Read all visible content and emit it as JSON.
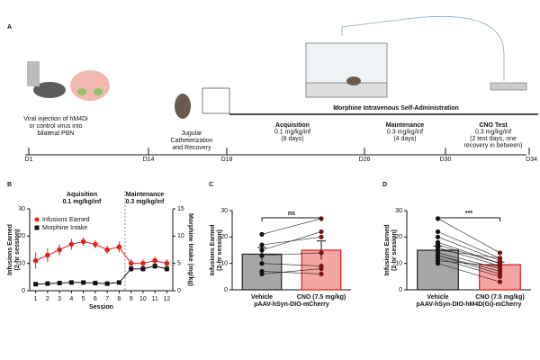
{
  "panel_labels": [
    "A",
    "B",
    "C",
    "D"
  ],
  "timeline": {
    "days": [
      "D1",
      "D14",
      "D18",
      "D26",
      "D30",
      "D34"
    ],
    "viral": [
      "Viral injection of hM4Di",
      "or control virus into",
      "bilateral PBN"
    ],
    "surgery": [
      "Jugular",
      "Catheterization",
      "and Recovery"
    ],
    "phase_title": "Morphine Intravenous Self-Administration",
    "phases": [
      [
        "Acquisition",
        "0.1 mg/kg/inf",
        "(8 days)"
      ],
      [
        "Maintenance",
        "0.3 mg/kg/inf",
        "(4 days)"
      ],
      [
        "CNO Test",
        "0.3 mg/kg/inf",
        "(2 test days, one",
        "recovery in between)"
      ]
    ]
  },
  "chart_data": [
    {
      "type": "line",
      "x_label": "Session",
      "y_label": [
        "Infusions Earned",
        "(2-hr session)"
      ],
      "y2_label": "Morphine Intake (mg/kg)",
      "annotations": [
        [
          "Aquisition",
          "0.1 mg/kg/inf"
        ],
        [
          "Maintenance",
          "0.3 mg/kg/inf"
        ]
      ],
      "x": [
        1,
        2,
        3,
        4,
        5,
        6,
        7,
        8,
        9,
        10,
        11,
        12
      ],
      "xlim": [
        0.5,
        12.5
      ],
      "xticks": [
        1,
        2,
        3,
        4,
        5,
        6,
        7,
        8,
        9,
        10,
        11,
        12
      ],
      "ylim": [
        0,
        30
      ],
      "yticks": [
        0,
        10,
        20,
        30
      ],
      "y2lim": [
        0,
        15
      ],
      "y2ticks": [
        0,
        5,
        10,
        15
      ],
      "series": [
        {
          "name": "Infusions Earned",
          "color": "#e3211c",
          "values": [
            11,
            13,
            15,
            17,
            18,
            17,
            15,
            16,
            10,
            10,
            11,
            10
          ],
          "errors": [
            3,
            2.5,
            2,
            2,
            1.5,
            1.5,
            1.5,
            2,
            1.5,
            1.5,
            1.5,
            1.5
          ]
        },
        {
          "name": "Morphine Intake",
          "color": "#111111",
          "axis": "y2",
          "values": [
            1.2,
            1.3,
            1.4,
            1.5,
            1.5,
            1.4,
            1.3,
            1.5,
            4,
            4,
            4.5,
            4
          ],
          "errors": [
            0.2,
            0.2,
            0.2,
            0.2,
            0.2,
            0.2,
            0.2,
            0.2,
            0.5,
            0.5,
            0.5,
            0.5
          ]
        }
      ]
    },
    {
      "type": "bar",
      "x_label": "pAAV-hSyn-DIO-mCherry",
      "y_label": [
        "Infusions Earned",
        "(2-hr session)"
      ],
      "significance": "ns",
      "categories": [
        "Vehicle",
        "CNO (7.5 mg/kg)"
      ],
      "values": [
        13.5,
        15
      ],
      "errors": [
        2.5,
        3.5
      ],
      "colors": [
        "#a6a6a6",
        "#f5a5a2"
      ],
      "edge_colors": [
        "#222222",
        "#d7191c"
      ],
      "point_colors": [
        "#111111",
        "#7a1010"
      ],
      "ylim": [
        0,
        30
      ],
      "yticks": [
        0,
        10,
        20,
        30
      ],
      "subjects": [
        [
          21,
          27
        ],
        [
          17,
          20
        ],
        [
          15,
          22
        ],
        [
          13,
          14
        ],
        [
          10,
          9
        ],
        [
          7,
          6
        ],
        [
          6,
          8
        ]
      ]
    },
    {
      "type": "bar",
      "x_label": "pAAV-hSyn-DIO-hM4D(Gi)-mCherry",
      "y_label": [
        "Infusions Earned",
        "(2-hr session)"
      ],
      "significance": "***",
      "categories": [
        "Vehicle",
        "CNO (7.5 mg/kg)"
      ],
      "values": [
        15,
        9.5
      ],
      "errors": [
        1.5,
        1
      ],
      "colors": [
        "#a6a6a6",
        "#f5a5a2"
      ],
      "edge_colors": [
        "#222222",
        "#d7191c"
      ],
      "point_colors": [
        "#111111",
        "#7a1010"
      ],
      "ylim": [
        0,
        30
      ],
      "yticks": [
        0,
        10,
        20,
        30
      ],
      "subjects": [
        [
          27,
          14
        ],
        [
          22,
          12
        ],
        [
          20,
          11
        ],
        [
          18,
          10
        ],
        [
          17,
          10
        ],
        [
          16,
          9
        ],
        [
          15,
          12
        ],
        [
          14,
          8
        ],
        [
          13,
          7
        ],
        [
          13,
          6
        ],
        [
          12,
          5
        ],
        [
          11,
          9
        ],
        [
          10,
          3
        ]
      ]
    }
  ]
}
